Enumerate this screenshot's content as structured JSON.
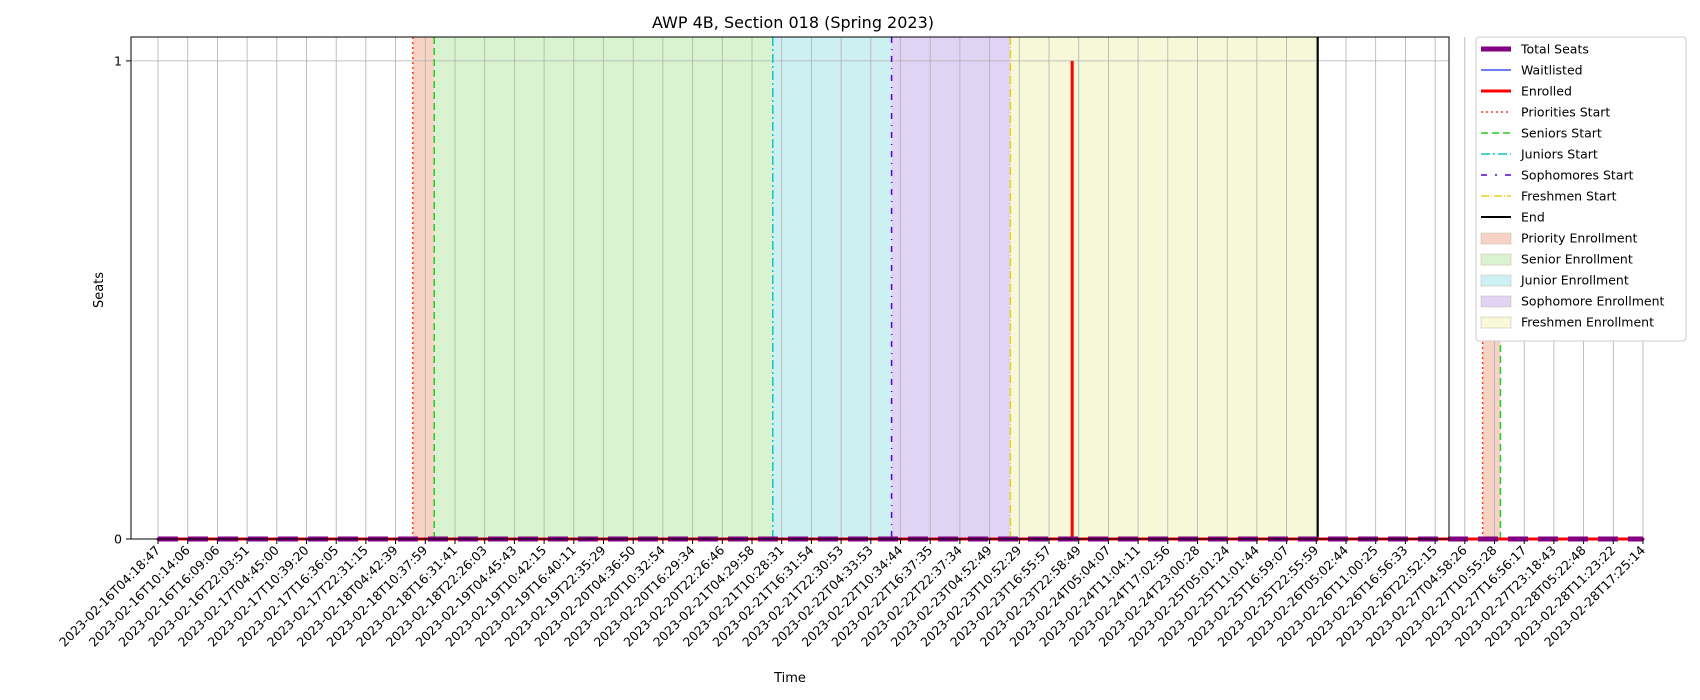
{
  "chart_data": {
    "type": "line",
    "title": "AWP 4B, Section 018 (Spring 2023)",
    "xlabel": "Time",
    "ylabel": "Seats",
    "ylim": [
      0,
      1.05
    ],
    "yticks": [
      0,
      1
    ],
    "grid": true,
    "legend_position": "outside-right",
    "x": [
      "2023-02-16T04:18:47",
      "2023-02-16T10:14:06",
      "2023-02-16T16:09:06",
      "2023-02-16T22:03:51",
      "2023-02-17T04:45:00",
      "2023-02-17T10:39:20",
      "2023-02-17T16:36:05",
      "2023-02-17T22:31:15",
      "2023-02-18T04:42:39",
      "2023-02-18T10:37:59",
      "2023-02-18T16:31:41",
      "2023-02-18T22:26:03",
      "2023-02-19T04:45:43",
      "2023-02-19T10:42:15",
      "2023-02-19T16:40:11",
      "2023-02-19T22:35:29",
      "2023-02-20T04:36:50",
      "2023-02-20T10:32:54",
      "2023-02-20T16:29:34",
      "2023-02-20T22:26:46",
      "2023-02-21T04:29:58",
      "2023-02-21T10:28:31",
      "2023-02-21T16:31:54",
      "2023-02-21T22:30:53",
      "2023-02-22T04:33:53",
      "2023-02-22T10:34:44",
      "2023-02-22T16:37:35",
      "2023-02-22T22:37:34",
      "2023-02-23T04:52:49",
      "2023-02-23T10:52:29",
      "2023-02-23T16:55:57",
      "2023-02-23T22:58:49",
      "2023-02-24T05:04:07",
      "2023-02-24T11:04:11",
      "2023-02-24T17:02:56",
      "2023-02-24T23:00:28",
      "2023-02-25T05:01:24",
      "2023-02-25T11:01:44",
      "2023-02-25T16:59:07",
      "2023-02-25T22:55:59",
      "2023-02-26T05:02:44",
      "2023-02-26T11:00:25",
      "2023-02-26T16:56:33",
      "2023-02-26T22:52:15",
      "2023-02-27T04:58:26",
      "2023-02-27T10:55:28",
      "2023-02-27T16:56:17",
      "2023-02-27T23:18:43",
      "2023-02-28T05:22:48",
      "2023-02-28T11:23:22",
      "2023-02-28T17:25:14"
    ],
    "series": [
      {
        "name": "Total Seats",
        "color": "#800080",
        "style": "dashed-thick",
        "values": [
          0,
          0,
          0,
          0,
          0,
          0,
          0,
          0,
          0,
          0,
          0,
          0,
          0,
          0,
          0,
          0,
          0,
          0,
          0,
          0,
          0,
          0,
          0,
          0,
          0,
          0,
          0,
          0,
          0,
          0,
          0,
          0,
          0,
          0,
          0,
          0,
          0,
          0,
          0,
          0,
          0,
          0,
          0,
          0,
          0,
          0,
          0,
          0,
          0,
          0,
          0
        ]
      },
      {
        "name": "Waitlisted",
        "color": "#0000ff",
        "style": "solid",
        "values": [
          0,
          0,
          0,
          0,
          0,
          0,
          0,
          0,
          0,
          0,
          0,
          0,
          0,
          0,
          0,
          0,
          0,
          0,
          0,
          0,
          0,
          0,
          0,
          0,
          0,
          0,
          0,
          0,
          0,
          0,
          0,
          0,
          0,
          0,
          0,
          0,
          0,
          0,
          0,
          0,
          0,
          0,
          0,
          0,
          0,
          0,
          0,
          0,
          0,
          0,
          0
        ]
      },
      {
        "name": "Enrolled",
        "color": "#ff0000",
        "style": "solid-thick",
        "values": [
          0,
          0,
          0,
          0,
          0,
          0,
          0,
          0,
          0,
          0,
          0,
          0,
          0,
          0,
          0,
          0,
          0,
          0,
          0,
          0,
          0,
          0,
          0,
          0,
          0,
          0,
          0,
          0,
          0,
          0,
          0,
          0,
          0,
          0,
          0,
          0,
          0,
          0,
          0,
          0,
          0,
          0,
          0,
          0,
          0,
          0,
          0,
          0,
          0,
          0,
          0
        ],
        "spike": {
          "x": "2023-02-23T16:55:57",
          "offset": 0.78,
          "value": 1
        }
      }
    ],
    "vlines": [
      {
        "name": "Priorities Start",
        "x": 8.58,
        "color": "#ff3b1f",
        "dash": "2,3"
      },
      {
        "name": "Seniors Start",
        "x": 9.3,
        "color": "#22cc22",
        "dash": "7,4"
      },
      {
        "name": "Juniors Start",
        "x": 20.7,
        "color": "#11c4c4",
        "dash": "9,3,2,3"
      },
      {
        "name": "Sophomores Start",
        "x": 24.7,
        "color": "#5500cc",
        "dash": "6,6,1,6"
      },
      {
        "name": "Freshmen Start",
        "x": 28.7,
        "color": "#e8d020",
        "dash": "8,2,1,2"
      },
      {
        "name": "End",
        "x": 39.05,
        "color": "#000000",
        "dash": ""
      },
      {
        "name": "Priorities Start",
        "x": 44.6,
        "color": "#ff3b1f",
        "dash": "2,3",
        "nolegend": true
      },
      {
        "name": "Seniors Start",
        "x": 45.2,
        "color": "#22cc22",
        "dash": "7,4",
        "nolegend": true
      }
    ],
    "spans": [
      {
        "name": "Priority Enrollment",
        "from": 8.58,
        "to": 9.3,
        "color": "#f7d3c6"
      },
      {
        "name": "Senior Enrollment",
        "from": 9.3,
        "to": 20.7,
        "color": "#d9f3d0"
      },
      {
        "name": "Junior Enrollment",
        "from": 20.7,
        "to": 24.7,
        "color": "#cdf0f2"
      },
      {
        "name": "Sophomore Enrollment",
        "from": 24.7,
        "to": 28.7,
        "color": "#e1d3f4"
      },
      {
        "name": "Freshmen Enrollment",
        "from": 28.7,
        "to": 39.05,
        "color": "#f6f8d8"
      },
      {
        "name": "Priority Enrollment",
        "from": 44.6,
        "to": 45.2,
        "color": "#f7d3c6",
        "nolegend": true
      }
    ],
    "legend": [
      {
        "label": "Total Seats",
        "kind": "line",
        "color": "#800080",
        "width": 5,
        "dash": ""
      },
      {
        "label": "Waitlisted",
        "kind": "line",
        "color": "#3b55e6",
        "width": 1.5,
        "dash": ""
      },
      {
        "label": "Enrolled",
        "kind": "line",
        "color": "#ff0000",
        "width": 3,
        "dash": ""
      },
      {
        "label": "Priorities Start",
        "kind": "line",
        "color": "#ff3b1f",
        "width": 1.5,
        "dash": "2,3"
      },
      {
        "label": "Seniors Start",
        "kind": "line",
        "color": "#22cc22",
        "width": 1.5,
        "dash": "7,4"
      },
      {
        "label": "Juniors Start",
        "kind": "line",
        "color": "#11c4c4",
        "width": 1.5,
        "dash": "9,3,2,3"
      },
      {
        "label": "Sophomores Start",
        "kind": "line",
        "color": "#5500cc",
        "width": 1.5,
        "dash": "6,8,2,8"
      },
      {
        "label": "Freshmen Start",
        "kind": "line",
        "color": "#e8d020",
        "width": 1.5,
        "dash": "8,2,1,2"
      },
      {
        "label": "End",
        "kind": "line",
        "color": "#000000",
        "width": 2,
        "dash": ""
      },
      {
        "label": "Priority Enrollment",
        "kind": "box",
        "color": "#f7d3c6"
      },
      {
        "label": "Senior Enrollment",
        "kind": "box",
        "color": "#d9f3d0"
      },
      {
        "label": "Junior Enrollment",
        "kind": "box",
        "color": "#cdf0f2"
      },
      {
        "label": "Sophomore Enrollment",
        "kind": "box",
        "color": "#e1d3f4"
      },
      {
        "label": "Freshmen Enrollment",
        "kind": "box",
        "color": "#f6f8d8"
      }
    ]
  }
}
